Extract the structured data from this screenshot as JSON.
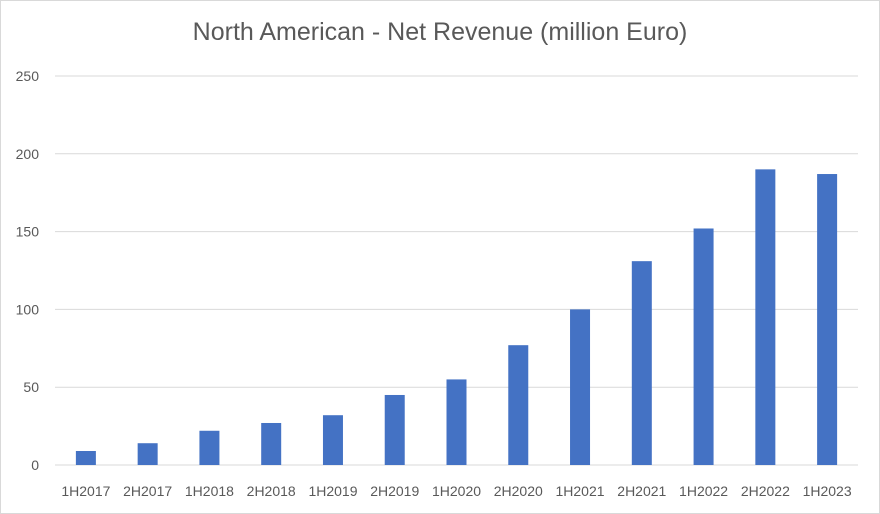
{
  "chart_data": {
    "type": "bar",
    "title": "North American - Net Revenue (million Euro)",
    "xlabel": "",
    "ylabel": "",
    "categories": [
      "1H2017",
      "2H2017",
      "1H2018",
      "2H2018",
      "1H2019",
      "2H2019",
      "1H2020",
      "2H2020",
      "1H2021",
      "2H2021",
      "1H2022",
      "2H2022",
      "1H2023"
    ],
    "values": [
      9,
      14,
      22,
      27,
      32,
      45,
      55,
      77,
      100,
      131,
      152,
      190,
      187
    ],
    "ylim": [
      0,
      250
    ],
    "yticks": [
      0,
      50,
      100,
      150,
      200,
      250
    ],
    "grid": true,
    "legend": "none",
    "colors": {
      "bar": "#4472c4",
      "grid": "#d9d9d9",
      "text": "#595959"
    }
  }
}
